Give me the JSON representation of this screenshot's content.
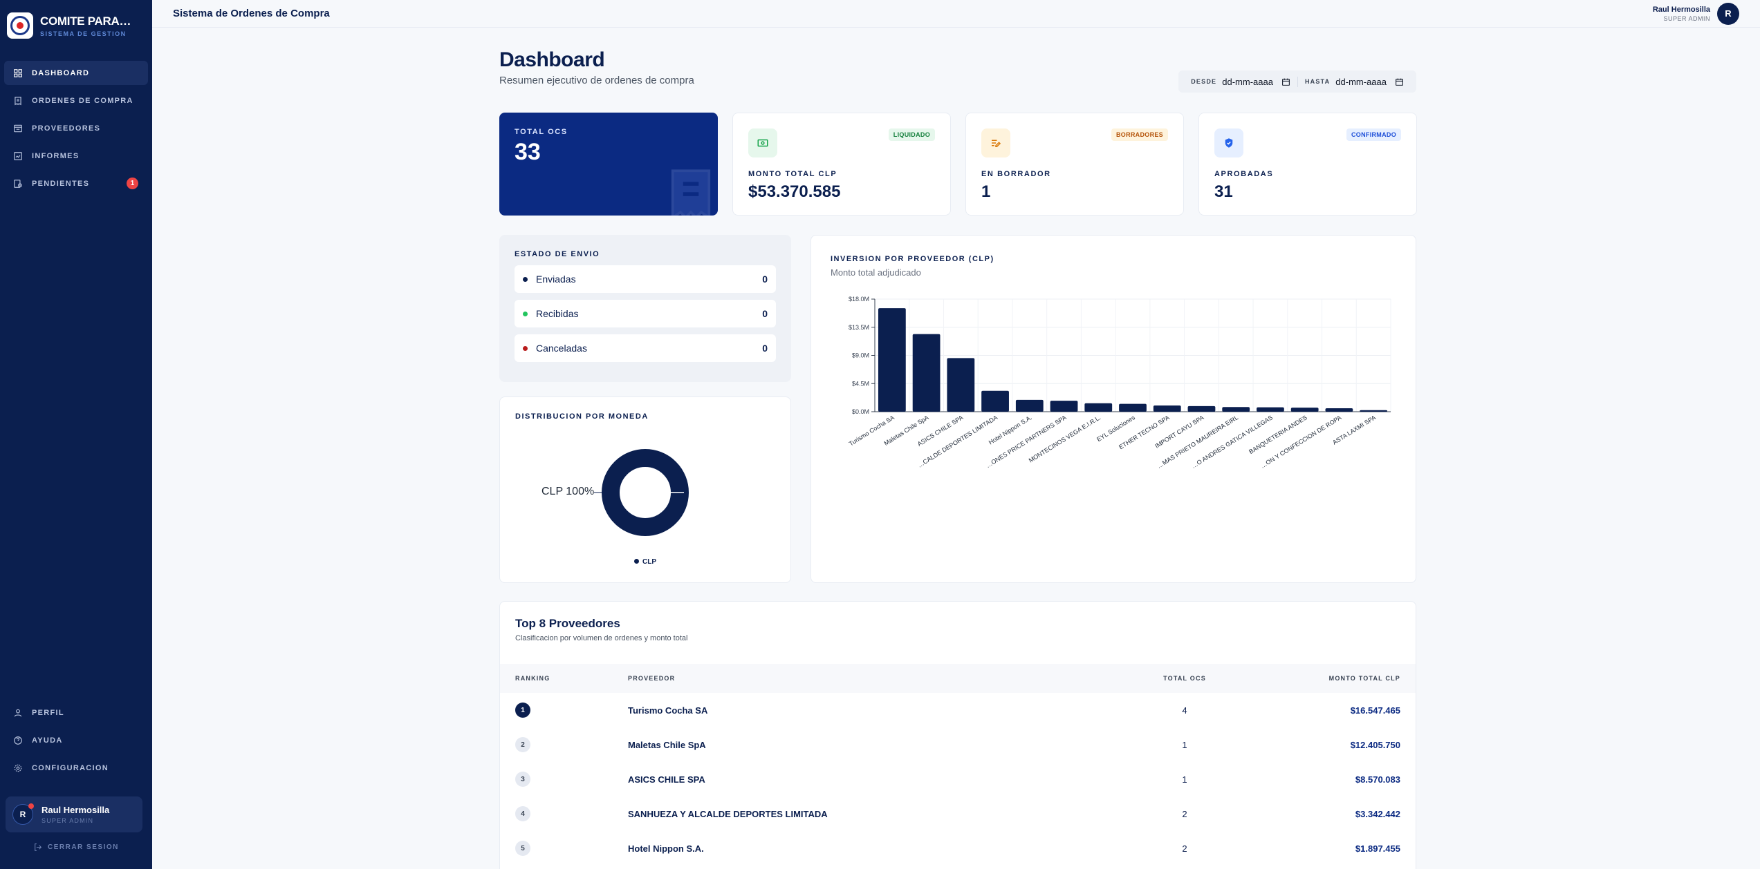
{
  "brand": {
    "title": "COMITE PARALIMPICO",
    "subtitle": "SISTEMA DE GESTION"
  },
  "sidebar": {
    "items": [
      {
        "label": "DASHBOARD",
        "icon": "grid-icon",
        "active": true
      },
      {
        "label": "ORDENES DE COMPRA",
        "icon": "receipt-icon"
      },
      {
        "label": "PROVEEDORES",
        "icon": "store-icon"
      },
      {
        "label": "INFORMES",
        "icon": "report-icon"
      },
      {
        "label": "PENDIENTES",
        "icon": "pending-icon",
        "badge": "1"
      }
    ],
    "bottom": [
      {
        "label": "PERFIL",
        "icon": "person-icon"
      },
      {
        "label": "AYUDA",
        "icon": "help-icon"
      },
      {
        "label": "CONFIGURACION",
        "icon": "gear-icon"
      }
    ],
    "user": {
      "initial": "R",
      "name": "Raul Hermosilla",
      "role": "SUPER ADMIN"
    },
    "logout": "CERRAR SESION"
  },
  "topbar": {
    "title": "Sistema de Ordenes de Compra",
    "user_name": "Raul Hermosilla",
    "user_role": "SUPER ADMIN",
    "user_initial": "R"
  },
  "page": {
    "title": "Dashboard",
    "subtitle": "Resumen ejecutivo de ordenes de compra",
    "filters": {
      "from_label": "DESDE",
      "from_value": "dd-mm-aaaa",
      "to_label": "HASTA",
      "to_value": "dd-mm-aaaa"
    }
  },
  "stats": {
    "total": {
      "label": "TOTAL OCS",
      "value": "33"
    },
    "monto": {
      "label": "MONTO TOTAL CLP",
      "value": "$53.370.585",
      "tag": "LIQUIDADO",
      "color": "#16a34a"
    },
    "borrador": {
      "label": "EN BORRADOR",
      "value": "1",
      "tag": "BORRADORES",
      "color": "#d97706"
    },
    "aprobadas": {
      "label": "APROBADAS",
      "value": "31",
      "tag": "CONFIRMADO",
      "color": "#2563eb"
    }
  },
  "envio": {
    "title": "ESTADO DE ENVIO",
    "rows": [
      {
        "label": "Enviadas",
        "count": "0",
        "color": "#0b1f4f"
      },
      {
        "label": "Recibidas",
        "count": "0",
        "color": "#22c55e"
      },
      {
        "label": "Canceladas",
        "count": "0",
        "color": "#b91c1c"
      }
    ]
  },
  "moneda": {
    "title": "DISTRIBUCION POR MONEDA",
    "slice_label": "CLP 100%",
    "legend": "CLP"
  },
  "chart": {
    "title": "INVERSION POR PROVEEDOR (CLP)",
    "subtitle": "Monto total adjudicado"
  },
  "chart_data": {
    "type": "bar",
    "categories": [
      "Turismo Cocha SA",
      "Maletas Chile SpA",
      "ASICS CHILE SPA",
      "…CALDE DEPORTES LIMITADA",
      "Hotel Nippon S.A.",
      "…ONES PRICE PARTNERS SPA",
      "MONTECINOS VEGA E.I.R.L.",
      "EYL Soluciones",
      "ETHER TECNO SPA",
      "IMPORT CAYU SPA",
      "…MAS PRIETO MAUREIRA EIRL",
      "…O ANDRES GATICA VILLEGAS",
      "BANQUETERIA ANDES",
      "…ON Y CONFECCION DE ROPA",
      "ASTA LAXMI SPA"
    ],
    "values": [
      16547465,
      12405750,
      8570083,
      3342442,
      1897455,
      1750000,
      1350000,
      1250000,
      1000000,
      900000,
      750000,
      700000,
      650000,
      550000,
      250000
    ],
    "ylim": [
      0,
      18000000
    ],
    "ticks": [
      "$0.0M",
      "$4.5M",
      "$9.0M",
      "$13.5M",
      "$18.0M"
    ],
    "tick_values": [
      0,
      4500000,
      9000000,
      13500000,
      18000000
    ],
    "color": "#0b1f4f",
    "grid": true
  },
  "table": {
    "title": "Top 8 Proveedores",
    "subtitle": "Clasificacion por volumen de ordenes y monto total",
    "columns": {
      "rank": "RANKING",
      "prov": "PROVEEDOR",
      "total": "TOTAL OCS",
      "amount": "MONTO TOTAL CLP"
    },
    "rows": [
      {
        "rank": "1",
        "name": "Turismo Cocha SA",
        "total": "4",
        "amount": "$16.547.465"
      },
      {
        "rank": "2",
        "name": "Maletas Chile SpA",
        "total": "1",
        "amount": "$12.405.750"
      },
      {
        "rank": "3",
        "name": "ASICS CHILE SPA",
        "total": "1",
        "amount": "$8.570.083"
      },
      {
        "rank": "4",
        "name": "SANHUEZA Y ALCALDE DEPORTES LIMITADA",
        "total": "2",
        "amount": "$3.342.442"
      },
      {
        "rank": "5",
        "name": "Hotel Nippon S.A.",
        "total": "2",
        "amount": "$1.897.455"
      }
    ]
  }
}
